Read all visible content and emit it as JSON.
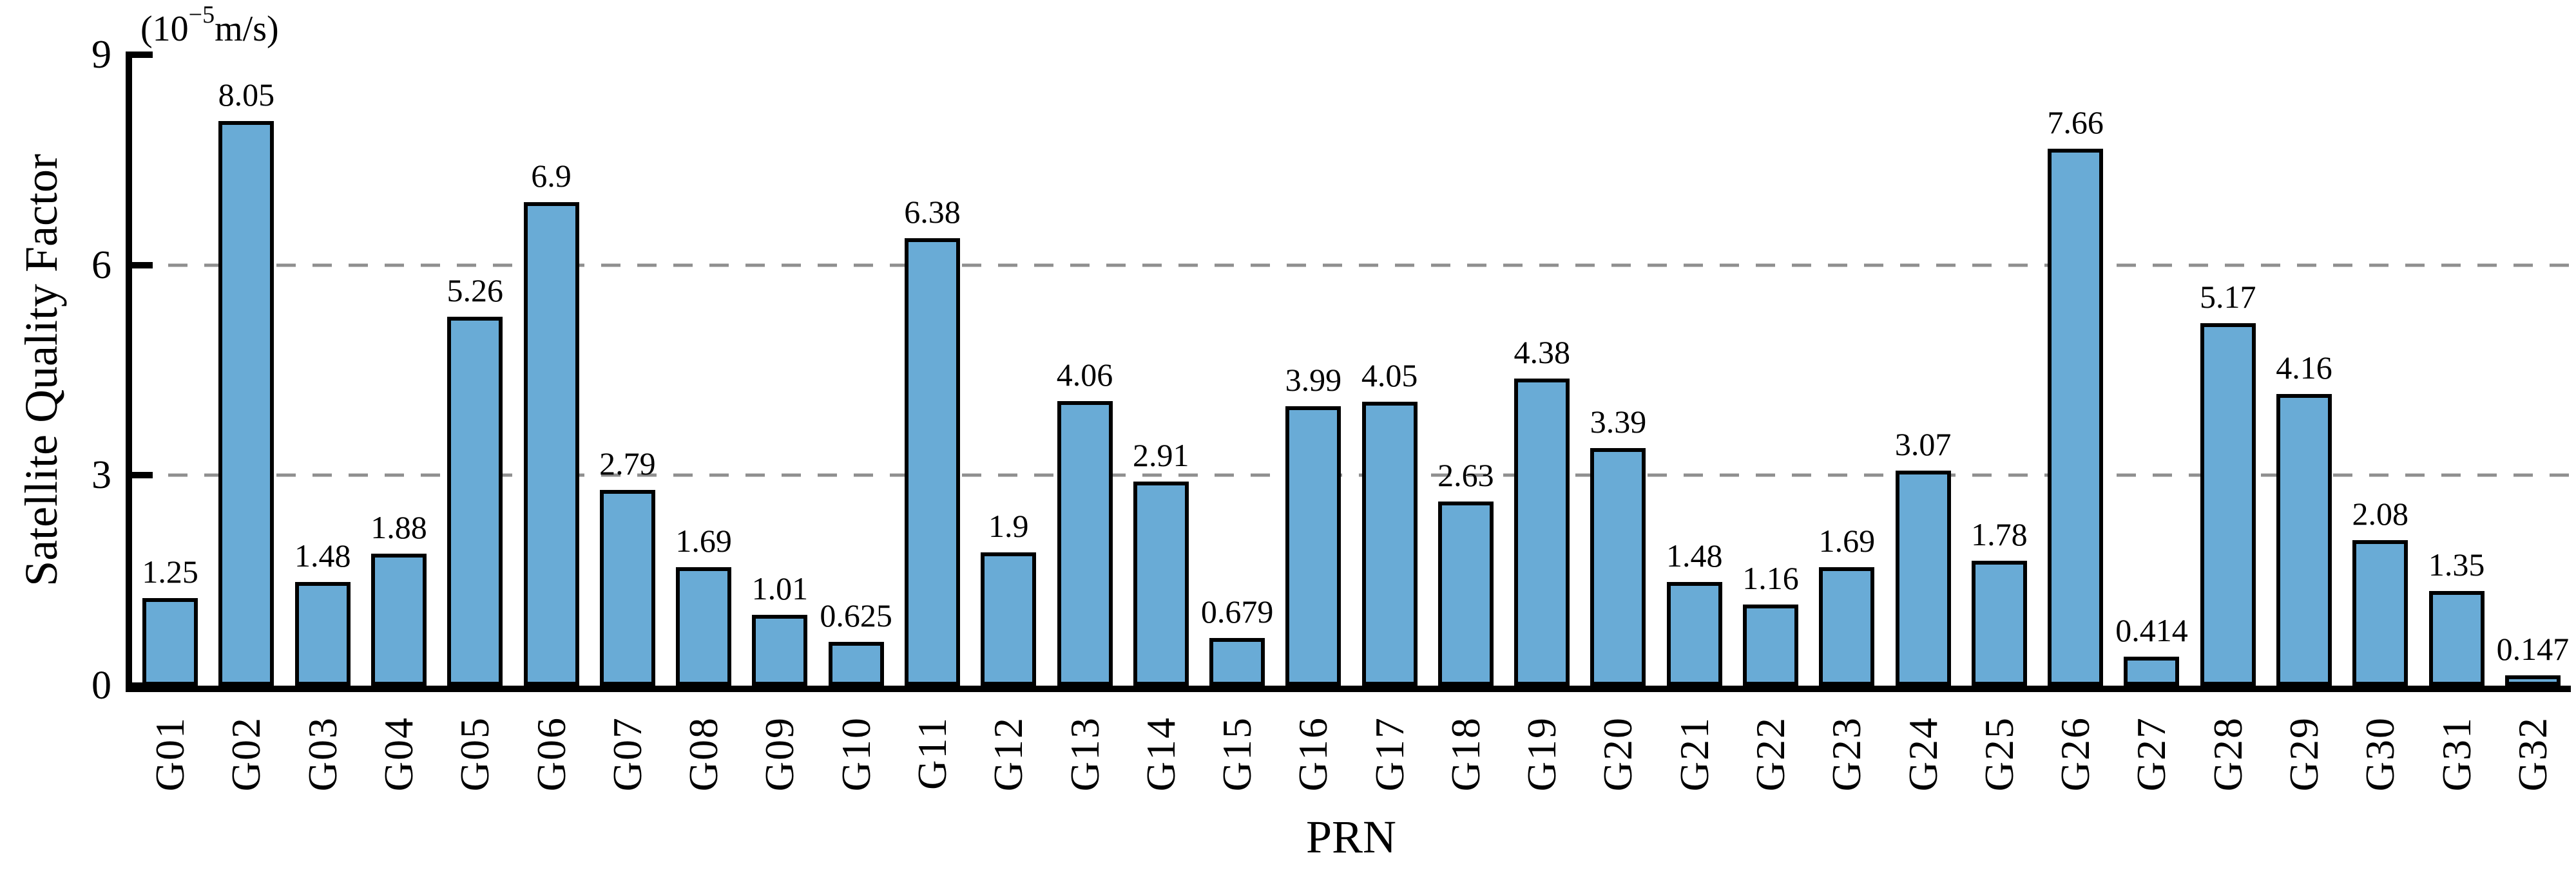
{
  "chart_data": {
    "type": "bar",
    "xlabel": "PRN",
    "ylabel": "Satellite Quality Factor",
    "unit": {
      "prefix": "(10",
      "exponent": "−5",
      "suffix": "m/s)"
    },
    "categories": [
      "G01",
      "G02",
      "G03",
      "G04",
      "G05",
      "G06",
      "G07",
      "G08",
      "G09",
      "G10",
      "G11",
      "G12",
      "G13",
      "G14",
      "G15",
      "G16",
      "G17",
      "G18",
      "G19",
      "G20",
      "G21",
      "G22",
      "G23",
      "G24",
      "G25",
      "G26",
      "G27",
      "G28",
      "G29",
      "G30",
      "G31",
      "G32"
    ],
    "values": [
      1.25,
      8.05,
      1.48,
      1.88,
      5.26,
      6.9,
      2.79,
      1.69,
      1.01,
      0.625,
      6.38,
      1.9,
      4.06,
      2.91,
      0.679,
      3.99,
      4.05,
      2.63,
      4.38,
      3.39,
      1.48,
      1.16,
      1.69,
      3.07,
      1.78,
      7.66,
      0.414,
      5.17,
      4.16,
      2.08,
      1.35,
      0.147
    ],
    "ylim": [
      0,
      9
    ],
    "yticks": [
      0,
      3,
      6,
      9
    ],
    "gridlines": [
      3,
      6
    ],
    "grid_style": "dashed",
    "legend": "none",
    "bar_color": "#69abd6",
    "bar_border_color": "#000000",
    "grid_color": "#8f8f8f",
    "axis_color": "#000000"
  }
}
